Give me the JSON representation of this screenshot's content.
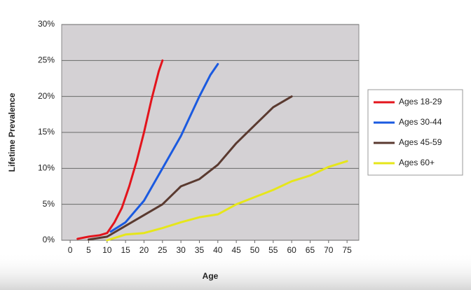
{
  "chart_data": {
    "type": "line",
    "x_label": "Age",
    "y_label": "Lifetime Prevalence",
    "xlim": [
      -2.3,
      78.2
    ],
    "xticks": [
      0,
      5,
      10,
      15,
      20,
      25,
      30,
      35,
      40,
      45,
      50,
      55,
      60,
      65,
      70,
      75
    ],
    "ylim": [
      0,
      30
    ],
    "yticks": [
      {
        "value": 0,
        "label": "0%"
      },
      {
        "value": 5,
        "label": "5%"
      },
      {
        "value": 10,
        "label": "10%"
      },
      {
        "value": 15,
        "label": "15%"
      },
      {
        "value": 20,
        "label": "20%"
      },
      {
        "value": 25,
        "label": "25%"
      },
      {
        "value": 30,
        "label": "30%"
      }
    ],
    "grid": true,
    "legend": "right",
    "series": [
      {
        "name": "Ages 18-29",
        "color": "#e3141c",
        "x": [
          2,
          5,
          8,
          10,
          12,
          14,
          16,
          18,
          20,
          22,
          24,
          25
        ],
        "values": [
          0.2,
          0.5,
          0.7,
          1.0,
          2.5,
          4.5,
          7.5,
          11,
          15,
          19.5,
          23.5,
          25
        ]
      },
      {
        "name": "Ages 30-44",
        "color": "#1a5ae0",
        "x": [
          11,
          15,
          20,
          25,
          30,
          35,
          38,
          40
        ],
        "values": [
          1.2,
          2.5,
          5.5,
          10,
          14.5,
          20,
          23,
          24.5
        ]
      },
      {
        "name": "Ages 45-59",
        "color": "#5a3a30",
        "x": [
          5,
          10,
          15,
          20,
          25,
          30,
          35,
          40,
          45,
          50,
          55,
          60
        ],
        "values": [
          0.1,
          0.5,
          2,
          3.5,
          5,
          7.5,
          8.5,
          10.5,
          13.5,
          16,
          18.5,
          20
        ]
      },
      {
        "name": "Ages 60+",
        "color": "#e6e61a",
        "x": [
          10,
          15,
          20,
          25,
          30,
          35,
          40,
          45,
          50,
          55,
          60,
          65,
          70,
          75
        ],
        "values": [
          0,
          0.8,
          1,
          1.7,
          2.5,
          3.2,
          3.6,
          5,
          6,
          7,
          8.2,
          9,
          10.2,
          11
        ]
      }
    ]
  }
}
